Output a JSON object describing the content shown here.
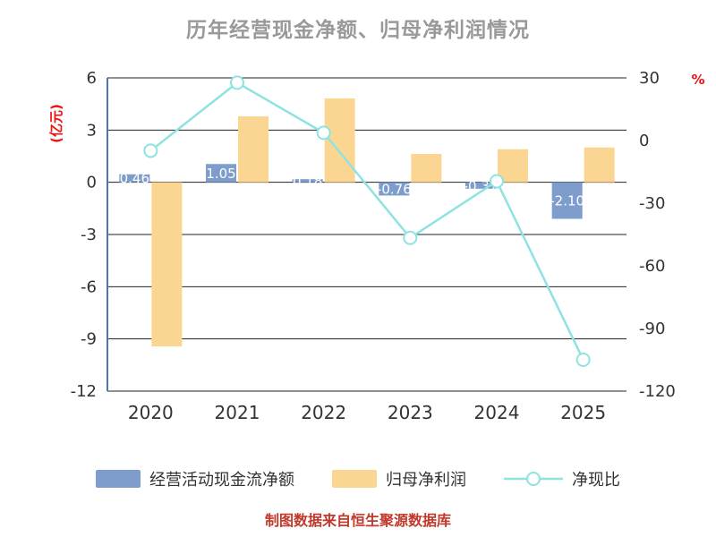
{
  "title": "历年经营现金净额、归母净利润情况",
  "footer": "制图数据来自恒生聚源数据库",
  "colors": {
    "title": "#999999",
    "axis_caption": "#ee1111",
    "tick": "#333333",
    "grid": "#222222",
    "axis_line": "#4a76b8",
    "bar_cash": "#7e9dcd",
    "bar_profit": "#fbd692",
    "line": "#8ee3e0",
    "marker_fill": "#ffffff",
    "label": "#ffffff",
    "footer": "#c0392b"
  },
  "chart_data": {
    "type": "bar",
    "subtype": "grouped-bar-with-line",
    "title": "历年经营现金净额、归母净利润情况",
    "categories": [
      "2020",
      "2021",
      "2022",
      "2023",
      "2024",
      "2025"
    ],
    "series": [
      {
        "name": "经营活动现金流净额",
        "type": "bar",
        "axis": "left",
        "values": [
          0.46,
          1.05,
          0.18,
          -0.76,
          -0.37,
          -2.1
        ]
      },
      {
        "name": "归母净利润",
        "type": "bar",
        "axis": "left",
        "values": [
          -9.43,
          3.79,
          4.82,
          1.63,
          1.9,
          2.0
        ]
      },
      {
        "name": "净现比",
        "type": "line",
        "axis": "right",
        "values": [
          -4.9,
          27.7,
          3.7,
          -46.6,
          -19.5,
          -105.0
        ]
      }
    ],
    "bar_labels": [
      "0.46",
      "1.05",
      "0.18",
      "-0.76",
      "-0.37",
      "-2.10"
    ],
    "left_axis": {
      "label": "(亿元)",
      "min": -12,
      "max": 6,
      "ticks": [
        6,
        3,
        0,
        -3,
        -6,
        -9,
        -12
      ]
    },
    "right_axis": {
      "label": "%",
      "min": -120,
      "max": 30,
      "ticks": [
        30,
        0,
        -30,
        -60,
        -90,
        -120
      ]
    },
    "legend": [
      "经营活动现金流净额",
      "归母净利润",
      "净现比"
    ],
    "legend_position": "bottom",
    "grid": true
  }
}
